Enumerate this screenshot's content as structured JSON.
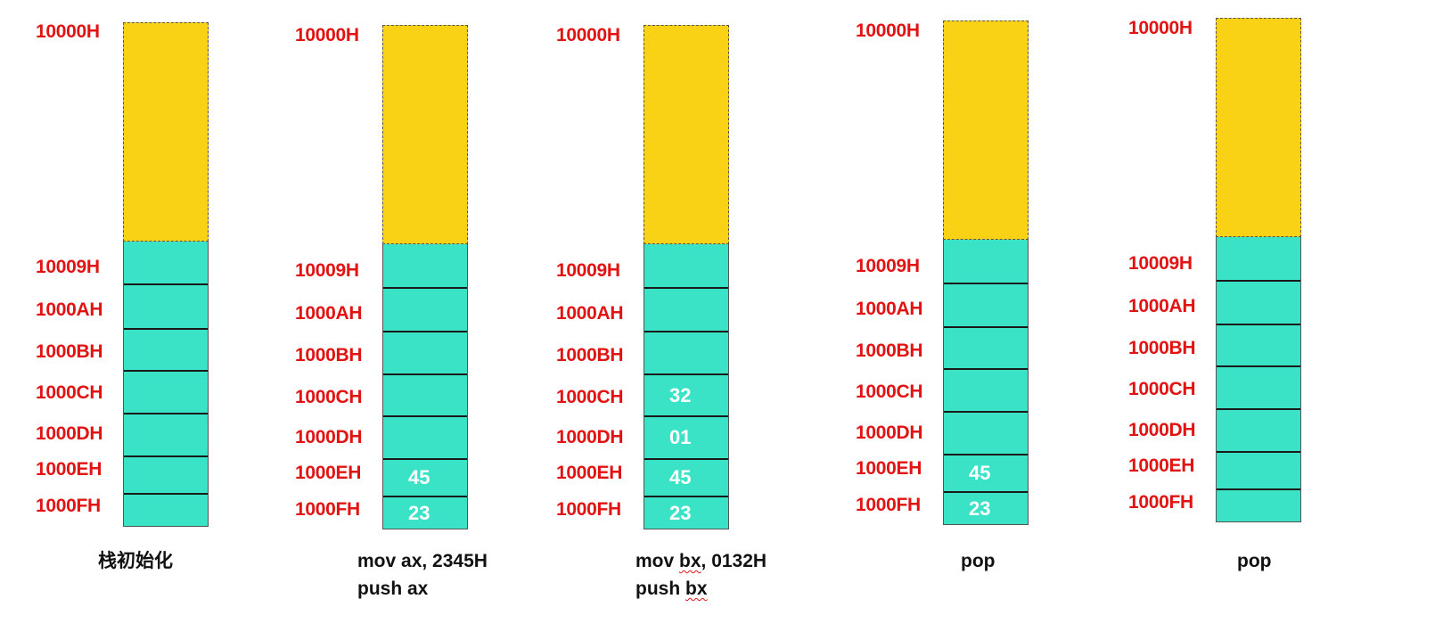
{
  "top_address": "10000H",
  "addresses": [
    "10009H",
    "1000AH",
    "1000BH",
    "1000CH",
    "1000DH",
    "1000EH",
    "1000FH"
  ],
  "colors": {
    "free_region": "#FAD215",
    "stack_cells": "#3AE3C6",
    "address_text": "#E21313",
    "value_text": "#FFFFFF"
  },
  "stages": [
    {
      "caption": [
        "栈初始化"
      ],
      "values": [
        "",
        "",
        "",
        "",
        "",
        "",
        ""
      ]
    },
    {
      "caption": [
        "mov ax, 2345H",
        "push ax"
      ],
      "values": [
        "",
        "",
        "",
        "",
        "",
        "45",
        "23"
      ]
    },
    {
      "caption": [
        "mov bx, 0132H",
        "push bx"
      ],
      "values": [
        "",
        "",
        "",
        "32",
        "01",
        "45",
        "23"
      ]
    },
    {
      "caption": [
        "pop"
      ],
      "values": [
        "",
        "",
        "",
        "",
        "",
        "45",
        "23"
      ]
    },
    {
      "caption": [
        "pop"
      ],
      "values": [
        "",
        "",
        "",
        "",
        "",
        "",
        ""
      ]
    }
  ]
}
